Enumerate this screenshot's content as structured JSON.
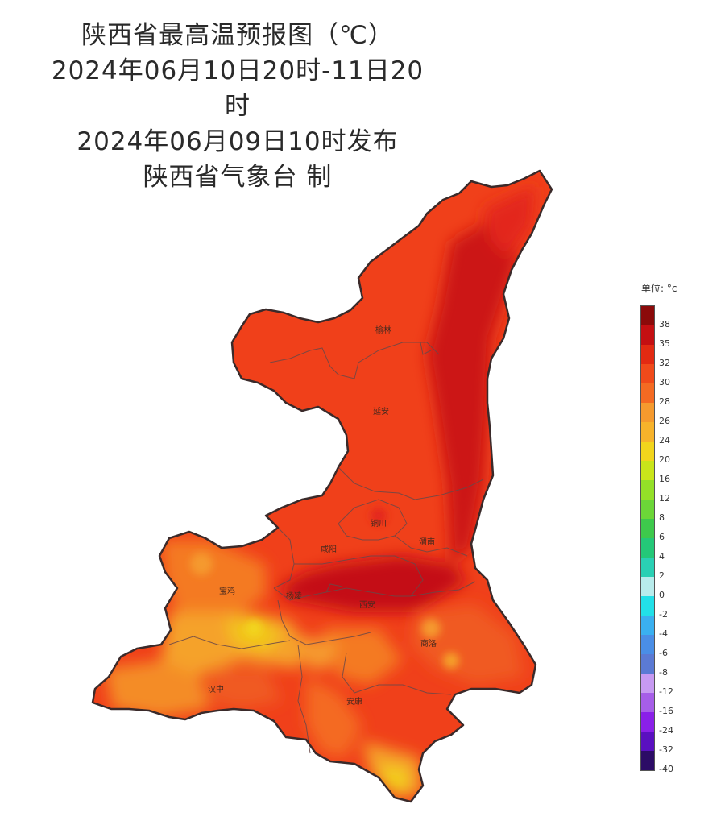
{
  "title": {
    "line1": "陕西省最高温预报图（℃）",
    "line2": "2024年06月10日20时-11日20时",
    "line3": "2024年06月09日10时发布",
    "line4": "陕西省气象台 制"
  },
  "cities": {
    "yulin": "榆林",
    "yanan": "延安",
    "tongchuan": "铜川",
    "weinan": "渭南",
    "xianyang": "咸阳",
    "baoji": "宝鸡",
    "yangling": "杨凌",
    "xian": "西安",
    "shangluo": "商洛",
    "hanzhong": "汉中",
    "ankang": "安康"
  },
  "legend": {
    "unit": "单位: °c",
    "items": [
      {
        "label": "38",
        "color": "#8b0a0a"
      },
      {
        "label": "35",
        "color": "#c40f12"
      },
      {
        "label": "32",
        "color": "#e22a12"
      },
      {
        "label": "30",
        "color": "#f04a1a"
      },
      {
        "label": "28",
        "color": "#f46a22"
      },
      {
        "label": "26",
        "color": "#f59a2e"
      },
      {
        "label": "24",
        "color": "#f7b32b"
      },
      {
        "label": "20",
        "color": "#f2d51c"
      },
      {
        "label": "16",
        "color": "#c9e51a"
      },
      {
        "label": "12",
        "color": "#94e028"
      },
      {
        "label": "8",
        "color": "#6cd638"
      },
      {
        "label": "6",
        "color": "#3ec94c"
      },
      {
        "label": "4",
        "color": "#24c878"
      },
      {
        "label": "2",
        "color": "#2ad0b4"
      },
      {
        "label": "0",
        "color": "#b8ecec"
      },
      {
        "label": "-2",
        "color": "#22e0e8"
      },
      {
        "label": "-4",
        "color": "#3ab0f0"
      },
      {
        "label": "-6",
        "color": "#4a8ee6"
      },
      {
        "label": "-8",
        "color": "#5b7ad4"
      },
      {
        "label": "-12",
        "color": "#c79af2"
      },
      {
        "label": "-16",
        "color": "#a65ee8"
      },
      {
        "label": "-24",
        "color": "#8a20e8"
      },
      {
        "label": "-32",
        "color": "#5a10c0"
      },
      {
        "label": "-40",
        "color": "#2c0c66"
      }
    ]
  }
}
